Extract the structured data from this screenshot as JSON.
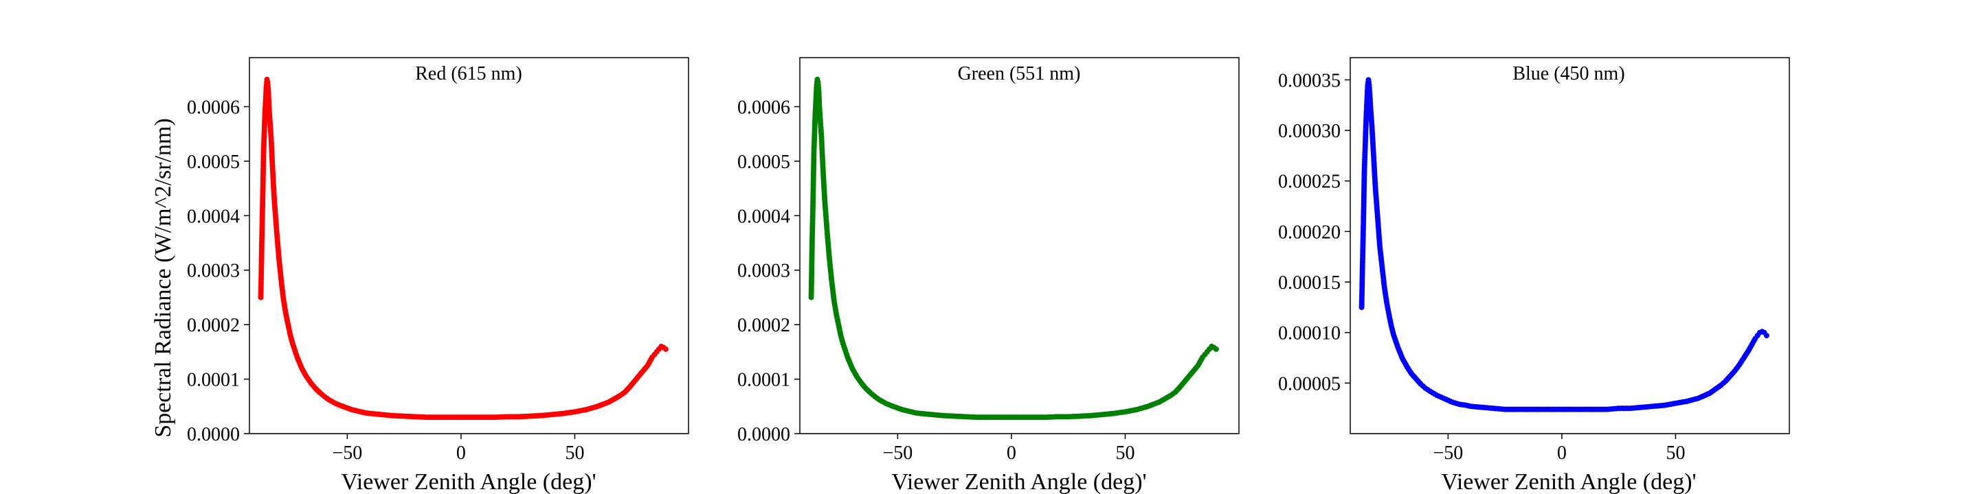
{
  "chart_data": [
    {
      "type": "scatter",
      "title": "Red (615 nm)",
      "xlabel": "Viewer Zenith Angle (deg)'",
      "ylabel": "Spectral Radiance (W/m^2/sr/nm)",
      "color": "#ff0000",
      "xlim": [
        -93,
        100
      ],
      "ylim": [
        0,
        0.00069
      ],
      "xticks": [
        -50,
        0,
        50
      ],
      "xtick_labels": [
        "−50",
        "0",
        "50"
      ],
      "yticks": [
        0,
        0.0001,
        0.0002,
        0.0003,
        0.0004,
        0.0005,
        0.0006
      ],
      "ytick_labels": [
        "0.0000",
        "0.0001",
        "0.0002",
        "0.0003",
        "0.0004",
        "0.0005",
        "0.0006"
      ],
      "x": [
        -88,
        -87.8,
        -87.6,
        -87.4,
        -87.2,
        -87,
        -86.8,
        -86.5,
        -86.2,
        -85.9,
        -85.6,
        -85.3,
        -85,
        -84.7,
        -84.4,
        -84,
        -83.5,
        -83,
        -82.5,
        -82,
        -81,
        -80,
        -79,
        -78,
        -77,
        -76,
        -75,
        -74,
        -72,
        -70,
        -68,
        -66,
        -64,
        -62,
        -60,
        -58,
        -55,
        -52,
        -50,
        -48,
        -45,
        -42,
        -40,
        -35,
        -30,
        -25,
        -20,
        -15,
        -10,
        -5,
        0,
        5,
        10,
        15,
        20,
        25,
        30,
        35,
        40,
        45,
        50,
        55,
        60,
        65,
        70,
        72,
        74,
        76,
        78,
        80,
        82,
        84,
        85,
        86,
        87,
        88,
        89,
        90
      ],
      "y": [
        0.00025,
        0.000295,
        0.000345,
        0.000385,
        0.000425,
        0.00047,
        0.000515,
        0.00055,
        0.000585,
        0.00061,
        0.000635,
        0.00065,
        0.000645,
        0.00063,
        0.0006,
        0.000575,
        0.000545,
        0.0005,
        0.00046,
        0.000425,
        0.00037,
        0.00032,
        0.00028,
        0.000245,
        0.00022,
        0.0002,
        0.00018,
        0.000165,
        0.00014,
        0.00012,
        0.000105,
        9.3e-05,
        8.3e-05,
        7.5e-05,
        6.8e-05,
        6.2e-05,
        5.5e-05,
        5e-05,
        4.7e-05,
        4.4e-05,
        4.1e-05,
        3.8e-05,
        3.7e-05,
        3.5e-05,
        3.3e-05,
        3.2e-05,
        3.1e-05,
        3e-05,
        3e-05,
        3e-05,
        3e-05,
        3e-05,
        3e-05,
        3e-05,
        3.1e-05,
        3.1e-05,
        3.2e-05,
        3.3e-05,
        3.5e-05,
        3.7e-05,
        4e-05,
        4.4e-05,
        5e-05,
        5.8e-05,
        7e-05,
        7.6e-05,
        8.5e-05,
        9.5e-05,
        0.000105,
        0.000115,
        0.000125,
        0.00014,
        0.000145,
        0.00015,
        0.000155,
        0.00016,
        0.000158,
        0.000155
      ]
    },
    {
      "type": "scatter",
      "title": "Green (551 nm)",
      "xlabel": "Viewer Zenith Angle (deg)'",
      "ylabel": "",
      "color": "#008000",
      "xlim": [
        -93,
        100
      ],
      "ylim": [
        0,
        0.00069
      ],
      "xticks": [
        -50,
        0,
        50
      ],
      "xtick_labels": [
        "−50",
        "0",
        "50"
      ],
      "yticks": [
        0,
        0.0001,
        0.0002,
        0.0003,
        0.0004,
        0.0005,
        0.0006
      ],
      "ytick_labels": [
        "0.0000",
        "0.0001",
        "0.0002",
        "0.0003",
        "0.0004",
        "0.0005",
        "0.0006"
      ],
      "x": [
        -88,
        -87.8,
        -87.6,
        -87.4,
        -87.2,
        -87,
        -86.8,
        -86.5,
        -86.2,
        -85.9,
        -85.6,
        -85.3,
        -85,
        -84.7,
        -84.4,
        -84,
        -83.5,
        -83,
        -82.5,
        -82,
        -81,
        -80,
        -79,
        -78,
        -77,
        -76,
        -75,
        -74,
        -72,
        -70,
        -68,
        -66,
        -64,
        -62,
        -60,
        -58,
        -55,
        -52,
        -50,
        -48,
        -45,
        -42,
        -40,
        -35,
        -30,
        -25,
        -20,
        -15,
        -10,
        -5,
        0,
        5,
        10,
        15,
        20,
        25,
        30,
        35,
        40,
        45,
        50,
        55,
        60,
        65,
        70,
        72,
        74,
        76,
        78,
        80,
        82,
        84,
        85,
        86,
        87,
        88,
        89,
        90
      ],
      "y": [
        0.00025,
        0.0003,
        0.00035,
        0.00039,
        0.00043,
        0.000475,
        0.00052,
        0.000555,
        0.00059,
        0.000615,
        0.00064,
        0.00065,
        0.000645,
        0.00063,
        0.0006,
        0.000575,
        0.000545,
        0.0005,
        0.00046,
        0.000425,
        0.00037,
        0.00032,
        0.00028,
        0.000245,
        0.00022,
        0.0002,
        0.00018,
        0.000165,
        0.00014,
        0.00012,
        0.000105,
        9.3e-05,
        8.3e-05,
        7.5e-05,
        6.8e-05,
        6.2e-05,
        5.5e-05,
        5e-05,
        4.7e-05,
        4.4e-05,
        4.1e-05,
        3.8e-05,
        3.7e-05,
        3.5e-05,
        3.3e-05,
        3.2e-05,
        3.1e-05,
        3e-05,
        3e-05,
        3e-05,
        3e-05,
        3e-05,
        3e-05,
        3e-05,
        3.1e-05,
        3.1e-05,
        3.2e-05,
        3.3e-05,
        3.5e-05,
        3.7e-05,
        4e-05,
        4.4e-05,
        5e-05,
        5.8e-05,
        7e-05,
        7.6e-05,
        8.5e-05,
        9.5e-05,
        0.000105,
        0.000115,
        0.000125,
        0.00014,
        0.000145,
        0.00015,
        0.000155,
        0.00016,
        0.000158,
        0.000155
      ]
    },
    {
      "type": "scatter",
      "title": "Blue (450 nm)",
      "xlabel": "Viewer Zenith Angle (deg)'",
      "ylabel": "",
      "color": "#0000ff",
      "xlim": [
        -93,
        100
      ],
      "ylim": [
        0,
        0.000372
      ],
      "xticks": [
        -50,
        0,
        50
      ],
      "xtick_labels": [
        "−50",
        "0",
        "50"
      ],
      "yticks": [
        5e-05,
        0.0001,
        0.00015,
        0.0002,
        0.00025,
        0.0003,
        0.00035
      ],
      "ytick_labels": [
        "0.00005",
        "0.00010",
        "0.00015",
        "0.00020",
        "0.00025",
        "0.00030",
        "0.00035"
      ],
      "x": [
        -88,
        -87.8,
        -87.6,
        -87.4,
        -87.2,
        -87,
        -86.8,
        -86.5,
        -86.2,
        -85.9,
        -85.6,
        -85.3,
        -85,
        -84.7,
        -84.4,
        -84,
        -83.5,
        -83,
        -82.5,
        -82,
        -81,
        -80,
        -79,
        -78,
        -77,
        -76,
        -75,
        -74,
        -72,
        -70,
        -68,
        -66,
        -64,
        -62,
        -60,
        -58,
        -55,
        -52,
        -50,
        -48,
        -45,
        -42,
        -40,
        -35,
        -30,
        -25,
        -20,
        -15,
        -10,
        -5,
        0,
        5,
        10,
        15,
        20,
        25,
        30,
        35,
        40,
        45,
        50,
        55,
        60,
        65,
        70,
        72,
        74,
        76,
        78,
        80,
        82,
        84,
        85,
        86,
        87,
        88,
        89,
        90
      ],
      "y": [
        0.000125,
        0.000145,
        0.00017,
        0.00019,
        0.00021,
        0.000235,
        0.00026,
        0.00028,
        0.0003,
        0.000318,
        0.000332,
        0.000345,
        0.00035,
        0.000345,
        0.000335,
        0.00032,
        0.000305,
        0.000285,
        0.000265,
        0.000245,
        0.000215,
        0.000185,
        0.000165,
        0.000145,
        0.00013,
        0.000118,
        0.000107,
        9.8e-05,
        8.5e-05,
        7.4e-05,
        6.6e-05,
        5.9e-05,
        5.4e-05,
        4.9e-05,
        4.5e-05,
        4.2e-05,
        3.8e-05,
        3.5e-05,
        3.3e-05,
        3.1e-05,
        2.9e-05,
        2.8e-05,
        2.7e-05,
        2.6e-05,
        2.5e-05,
        2.4e-05,
        2.4e-05,
        2.4e-05,
        2.4e-05,
        2.4e-05,
        2.4e-05,
        2.4e-05,
        2.4e-05,
        2.4e-05,
        2.4e-05,
        2.5e-05,
        2.5e-05,
        2.6e-05,
        2.7e-05,
        2.8e-05,
        3e-05,
        3.2e-05,
        3.5e-05,
        4e-05,
        4.8e-05,
        5.2e-05,
        5.7e-05,
        6.2e-05,
        6.8e-05,
        7.5e-05,
        8.2e-05,
        9e-05,
        9.4e-05,
        9.7e-05,
        0.0001,
        0.000101,
        0.0001,
        9.7e-05
      ]
    }
  ]
}
